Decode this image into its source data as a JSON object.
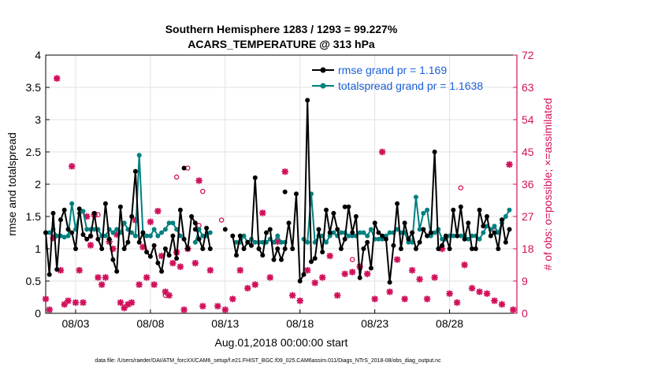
{
  "chart_data": {
    "type": "line",
    "title_lines": [
      "Southern Hemisphere 1283 / 1293 = 99.227%",
      "ACARS_TEMPERATURE @ 313 hPa"
    ],
    "xlabel": "Aug.01,2018 00:00:00 start",
    "ylabel": "rmse and totalspread",
    "ylabel_right": "# of obs: o=possible; ×=assimilated",
    "footer": "data file: /Users/raeder/DAI/ATM_forcXX/CAM6_setup/f.e21.FHIST_BGC.f09_025.CAM6assim.011/Diags_NTrS_2018-08/obs_diag_output.nc",
    "xlim": [
      1,
      32.5
    ],
    "x_ticks": [
      3,
      8,
      13,
      18,
      23,
      28
    ],
    "x_tick_labels": [
      "08/03",
      "08/08",
      "08/13",
      "08/18",
      "08/23",
      "08/28"
    ],
    "ylim": [
      0,
      4
    ],
    "y_ticks": [
      0,
      0.5,
      1,
      1.5,
      2,
      2.5,
      3,
      3.5,
      4
    ],
    "y_tick_labels": [
      "0",
      "0.5",
      "1",
      "1.5",
      "2",
      "2.5",
      "3",
      "3.5",
      "4"
    ],
    "ylim_right": [
      0,
      72
    ],
    "y_ticks_right": [
      0,
      9,
      18,
      27,
      36,
      45,
      54,
      63,
      72
    ],
    "y_tick_labels_right": [
      "0",
      "9",
      "18",
      "27",
      "36",
      "45",
      "54",
      "63",
      "72"
    ],
    "grid": true,
    "legend_position": "top-right",
    "series": [
      {
        "name": "rmse",
        "legend_label": "rmse grand pr = 1.169",
        "color": "#000000",
        "axis": "left",
        "x": [
          1.0,
          1.25,
          1.5,
          1.75,
          2.0,
          2.25,
          2.5,
          2.75,
          3.0,
          3.25,
          3.5,
          3.75,
          4.0,
          4.25,
          4.5,
          4.75,
          5.0,
          5.25,
          5.5,
          5.75,
          6.0,
          6.25,
          6.5,
          6.75,
          7.0,
          7.25,
          7.5,
          7.75,
          8.0,
          8.25,
          8.5,
          8.75,
          9.0,
          9.25,
          9.5,
          9.75,
          10.0,
          10.25,
          10.5,
          10.75,
          11.0,
          11.25,
          11.5,
          11.75,
          12.0,
          null,
          13.5,
          13.75,
          14.0,
          14.25,
          14.5,
          14.75,
          15.0,
          15.25,
          15.5,
          15.75,
          16.0,
          16.25,
          16.5,
          16.75,
          17.0,
          17.25,
          17.5,
          17.75,
          18.0,
          18.25,
          18.5,
          18.75,
          19.0,
          19.25,
          19.5,
          19.75,
          20.0,
          20.25,
          20.5,
          20.75,
          21.0,
          21.25,
          21.5,
          21.75,
          22.0,
          22.25,
          22.5,
          22.75,
          23.0,
          23.25,
          23.5,
          23.75,
          24.0,
          24.25,
          24.5,
          24.75,
          25.0,
          25.25,
          25.5,
          25.75,
          26.0,
          26.25,
          26.5,
          26.75,
          27.0,
          27.25,
          27.5,
          27.75,
          28.0,
          28.25,
          28.5,
          28.75,
          29.0,
          29.25,
          29.5,
          29.75,
          30.0,
          30.25,
          30.5,
          30.75,
          31.0,
          31.25,
          31.5,
          31.75,
          32.0
        ],
        "y": [
          1.25,
          0.6,
          1.55,
          0.68,
          1.45,
          1.6,
          1.3,
          1.25,
          1.0,
          1.62,
          1.22,
          1.15,
          1.2,
          1.55,
          1.15,
          1.0,
          1.7,
          1.15,
          0.83,
          0.65,
          1.65,
          1.0,
          1.1,
          1.5,
          2.2,
          1.1,
          1.25,
          0.95,
          0.88,
          1.05,
          0.78,
          0.65,
          1.0,
          0.9,
          1.2,
          0.85,
          1.6,
          1.15,
          1.0,
          1.5,
          1.4,
          1.15,
          1.0,
          1.32,
          1.0,
          null,
          1.2,
          0.9,
          1.2,
          1.0,
          1.1,
          1.05,
          2.1,
          1.0,
          0.9,
          1.25,
          1.3,
          0.83,
          1.0,
          0.83,
          1.0,
          1.4,
          1.0,
          1.85,
          0.5,
          0.6,
          3.3,
          0.8,
          0.85,
          1.3,
          0.95,
          1.6,
          1.25,
          1.55,
          1.3,
          1.0,
          1.15,
          1.65,
          1.25,
          1.5,
          0.55,
          1.0,
          1.1,
          0.7,
          1.4,
          1.25,
          1.2,
          1.15,
          0.48,
          1.05,
          1.7,
          1.0,
          1.4,
          1.15,
          1.25,
          1.0,
          1.1,
          1.3,
          1.2,
          1.25,
          2.5,
          1.0,
          1.05,
          1.2,
          1.0,
          1.6,
          1.2,
          1.65,
          1.15,
          1.4,
          1.0,
          1.0,
          1.6,
          1.35,
          1.5,
          1.2,
          1.25,
          1.0,
          1.45,
          1.1,
          1.3
        ],
        "extra_points": {
          "x": [
            10.25,
            11.0,
            13.0,
            17.0,
            21.0
          ],
          "y": [
            2.25,
            1.3,
            1.3,
            1.88,
            1.65
          ]
        }
      },
      {
        "name": "totalspread",
        "legend_label": "totalspread grand pr = 1.1638",
        "color": "#00807f",
        "axis": "left",
        "x": [
          1.0,
          1.25,
          1.5,
          1.75,
          2.0,
          2.25,
          2.5,
          2.75,
          3.0,
          3.25,
          3.5,
          3.75,
          4.0,
          4.25,
          4.5,
          4.75,
          5.0,
          5.25,
          5.5,
          5.75,
          6.0,
          6.25,
          6.5,
          6.75,
          7.0,
          7.25,
          7.5,
          7.75,
          8.0,
          8.25,
          8.5,
          8.75,
          9.0,
          9.25,
          9.5,
          9.75,
          10.0,
          null,
          11.0,
          11.25,
          11.5,
          11.75,
          12.0,
          null,
          13.75,
          14.0,
          14.25,
          14.5,
          14.75,
          15.0,
          15.25,
          15.5,
          15.75,
          16.0,
          16.25,
          16.5,
          16.75,
          17.0,
          null,
          18.25,
          18.5,
          18.75,
          19.0,
          19.25,
          19.5,
          19.75,
          20.0,
          20.25,
          20.5,
          20.75,
          21.0,
          21.25,
          21.5,
          21.75,
          22.0,
          22.25,
          22.5,
          22.75,
          23.0,
          23.25,
          23.5,
          23.75,
          24.0,
          24.25,
          24.5,
          24.75,
          25.0,
          25.25,
          25.5,
          25.75,
          26.0,
          26.25,
          26.5,
          26.75,
          27.0,
          27.25,
          27.5,
          27.75,
          28.0,
          28.25,
          28.5,
          28.75,
          29.0,
          29.25,
          29.5,
          29.75,
          30.0,
          30.25,
          30.5,
          30.75,
          31.0,
          31.25,
          31.5,
          31.75,
          32.0
        ],
        "y": [
          1.25,
          1.25,
          1.3,
          1.2,
          1.2,
          1.18,
          1.2,
          1.7,
          1.3,
          1.55,
          1.58,
          1.3,
          1.3,
          1.3,
          1.3,
          1.2,
          1.2,
          1.3,
          1.25,
          1.3,
          1.25,
          1.4,
          1.3,
          1.25,
          1.2,
          2.45,
          1.25,
          1.2,
          1.2,
          1.3,
          1.2,
          1.25,
          1.3,
          1.4,
          1.4,
          1.3,
          1.2,
          null,
          1.1,
          1.3,
          1.2,
          1.2,
          1.25,
          null,
          1.1,
          1.1,
          1.2,
          1.1,
          1.15,
          1.1,
          1.1,
          1.1,
          1.1,
          1.15,
          1.1,
          1.2,
          1.1,
          1.1,
          null,
          1.15,
          1.1,
          1.85,
          1.1,
          1.2,
          1.2,
          1.1,
          1.2,
          1.25,
          1.2,
          1.25,
          1.25,
          1.2,
          1.2,
          1.2,
          1.25,
          1.25,
          1.2,
          1.3,
          1.15,
          1.15,
          1.15,
          1.2,
          1.25,
          1.25,
          1.3,
          1.25,
          1.25,
          1.1,
          1.1,
          1.8,
          1.3,
          1.55,
          1.6,
          1.2,
          1.25,
          1.3,
          1.15,
          1.15,
          1.2,
          1.2,
          1.2,
          1.2,
          1.2,
          1.15,
          1.2,
          1.2,
          1.15,
          1.25,
          1.35,
          1.3,
          1.35,
          1.25,
          1.4,
          1.5,
          1.6
        ]
      },
      {
        "name": "obs_possible",
        "marker": "o",
        "color": "#d1105b",
        "axis": "right",
        "x": [
          1.75,
          4.0,
          4.5,
          9.0,
          9.75,
          10.5,
          11.25,
          11.5,
          12.75,
          21.5,
          28.75,
          31.0
        ],
        "y": [
          65.5,
          21.5,
          27.5,
          5.0,
          38.0,
          40.5,
          24.5,
          34.0,
          26.0,
          15.0,
          35.0,
          23.0
        ]
      },
      {
        "name": "obs_assimilated",
        "marker": "x",
        "color": "#d1105b",
        "axis": "right",
        "x": [
          1.0,
          1.25,
          1.5,
          1.75,
          2.0,
          2.25,
          2.5,
          2.75,
          3.0,
          3.25,
          3.5,
          3.75,
          4.0,
          4.25,
          4.5,
          4.75,
          5.0,
          5.25,
          5.5,
          5.75,
          6.0,
          6.25,
          6.5,
          6.75,
          7.0,
          7.25,
          7.5,
          7.75,
          8.0,
          8.25,
          8.5,
          8.75,
          9.0,
          9.25,
          9.5,
          9.75,
          10.0,
          10.25,
          10.5,
          11.0,
          11.25,
          11.5,
          12.0,
          12.5,
          13.0,
          13.5,
          14.0,
          14.5,
          15.0,
          15.5,
          16.0,
          16.5,
          17.0,
          17.5,
          18.0,
          18.5,
          19.0,
          19.5,
          20.0,
          20.5,
          21.0,
          21.5,
          22.0,
          22.5,
          23.0,
          23.5,
          24.0,
          24.5,
          25.0,
          25.5,
          26.0,
          26.5,
          27.0,
          27.5,
          28.0,
          28.5,
          29.0,
          29.5,
          30.0,
          30.5,
          31.0,
          31.5,
          32.0,
          32.25
        ],
        "y": [
          4.0,
          1.0,
          21.0,
          65.5,
          12.0,
          2.5,
          3.5,
          41.0,
          3.0,
          12.0,
          3.0,
          27.0,
          19.0,
          27.5,
          10.0,
          8.0,
          10.0,
          20.0,
          18.0,
          22.0,
          3.0,
          1.5,
          2.5,
          3.0,
          26.0,
          8.0,
          18.5,
          10.0,
          25.5,
          8.0,
          28.5,
          16.0,
          6.0,
          5.0,
          14.0,
          17.0,
          13.0,
          1.0,
          18.0,
          14.0,
          37.0,
          2.0,
          12.0,
          2.0,
          1.0,
          4.0,
          12.0,
          7.0,
          8.0,
          28.0,
          10.0,
          20.0,
          39.5,
          5.0,
          3.5,
          12.0,
          8.5,
          10.0,
          16.0,
          5.0,
          11.0,
          11.5,
          13.0,
          11.0,
          4.0,
          45.0,
          6.0,
          15.0,
          4.0,
          12.0,
          9.5,
          4.0,
          10.0,
          18.0,
          5.5,
          3.0,
          13.5,
          7.0,
          6.0,
          5.5,
          3.5,
          2.5,
          41.5,
          1.0
        ]
      }
    ]
  }
}
